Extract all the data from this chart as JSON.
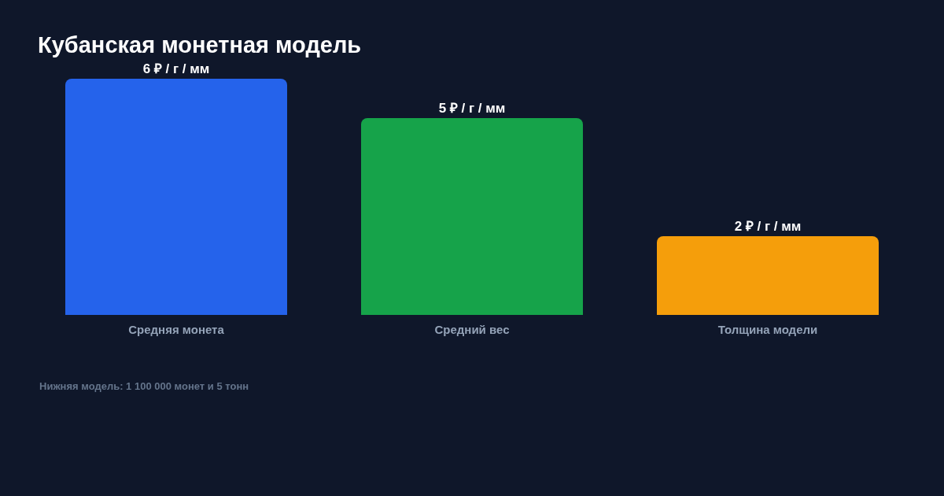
{
  "chart_data": {
    "type": "bar",
    "title": "Кубанская монетная модель",
    "categories": [
      "Средняя монета",
      "Средний вес",
      "Толщина модели"
    ],
    "values": [
      6,
      5,
      2
    ],
    "colors": [
      "#2563eb",
      "#16a34a",
      "#f59e0b"
    ],
    "value_labels": [
      "6 ₽ / г / мм",
      "5 ₽ / г / мм",
      "2 ₽ / г / мм"
    ],
    "ylim": [
      0,
      6
    ],
    "tick_labels": "x",
    "annotations": [
      "Нижняя модель: 1 100 000 монет и 5 тонн"
    ]
  }
}
